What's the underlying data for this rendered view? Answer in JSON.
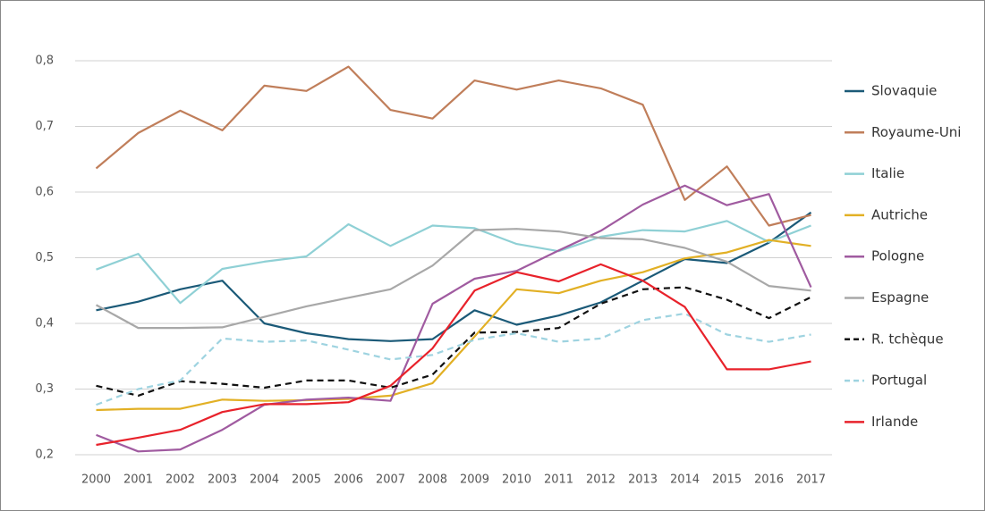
{
  "chart_data": {
    "type": "line",
    "categories": [
      "2000",
      "2001",
      "2002",
      "2003",
      "2004",
      "2005",
      "2006",
      "2007",
      "2008",
      "2009",
      "2010",
      "2011",
      "2012",
      "2013",
      "2014",
      "2015",
      "2016",
      "2017"
    ],
    "ylim": [
      0.2,
      0.8
    ],
    "yticks": [
      {
        "value": 0.2,
        "label": "0,2"
      },
      {
        "value": 0.3,
        "label": "0,3"
      },
      {
        "value": 0.4,
        "label": "0,4"
      },
      {
        "value": 0.5,
        "label": "0,5"
      },
      {
        "value": 0.6,
        "label": "0,6"
      },
      {
        "value": 0.7,
        "label": "0,7"
      },
      {
        "value": 0.8,
        "label": "0,8"
      }
    ],
    "grid": true,
    "legend": "right",
    "series": [
      {
        "name": "Slovaquie",
        "color": "#1b5a78",
        "dashed": false,
        "values": [
          0.42,
          0.433,
          0.452,
          0.465,
          0.4,
          0.385,
          0.376,
          0.373,
          0.376,
          0.42,
          0.398,
          0.412,
          0.432,
          0.465,
          0.498,
          0.492,
          0.523,
          0.569
        ]
      },
      {
        "name": "Royaume-Uni",
        "color": "#c07e5a",
        "dashed": false,
        "values": [
          0.636,
          0.69,
          0.724,
          0.694,
          0.762,
          0.754,
          0.791,
          0.725,
          0.712,
          0.77,
          0.756,
          0.77,
          0.758,
          0.733,
          0.588,
          0.639,
          0.549,
          0.565
        ]
      },
      {
        "name": "Italie",
        "color": "#8fd0d5",
        "dashed": false,
        "values": [
          0.482,
          0.506,
          0.431,
          0.483,
          0.494,
          0.502,
          0.551,
          0.518,
          0.549,
          0.545,
          0.521,
          0.51,
          0.532,
          0.542,
          0.54,
          0.556,
          0.524,
          0.549
        ]
      },
      {
        "name": "Autriche",
        "color": "#e2b025",
        "dashed": false,
        "values": [
          0.268,
          0.27,
          0.27,
          0.284,
          0.282,
          0.283,
          0.285,
          0.29,
          0.309,
          0.38,
          0.452,
          0.446,
          0.465,
          0.478,
          0.499,
          0.508,
          0.527,
          0.518
        ]
      },
      {
        "name": "Pologne",
        "color": "#a05ba0",
        "dashed": false,
        "values": [
          0.23,
          0.205,
          0.208,
          0.238,
          0.276,
          0.284,
          0.287,
          0.282,
          0.43,
          0.468,
          0.48,
          0.511,
          0.541,
          0.581,
          0.61,
          0.58,
          0.597,
          0.455
        ]
      },
      {
        "name": "Espagne",
        "color": "#a8a8a8",
        "dashed": false,
        "values": [
          0.428,
          0.393,
          0.393,
          0.394,
          0.41,
          0.426,
          0.439,
          0.452,
          0.488,
          0.542,
          0.544,
          0.54,
          0.53,
          0.528,
          0.515,
          0.494,
          0.457,
          0.45
        ]
      },
      {
        "name": "R. tchèque",
        "color": "#111111",
        "dashed": true,
        "values": [
          0.305,
          0.29,
          0.312,
          0.308,
          0.302,
          0.313,
          0.313,
          0.302,
          0.322,
          0.386,
          0.387,
          0.393,
          0.43,
          0.452,
          0.455,
          0.436,
          0.408,
          0.44
        ]
      },
      {
        "name": "Portugal",
        "color": "#9ed3e0",
        "dashed": true,
        "values": [
          0.276,
          0.3,
          0.313,
          0.377,
          0.372,
          0.374,
          0.36,
          0.345,
          0.352,
          0.375,
          0.385,
          0.372,
          0.377,
          0.405,
          0.415,
          0.383,
          0.372,
          0.383
        ]
      },
      {
        "name": "Irlande",
        "color": "#e8222b",
        "dashed": false,
        "values": [
          0.215,
          0.226,
          0.238,
          0.265,
          0.277,
          0.277,
          0.28,
          0.305,
          0.362,
          0.45,
          0.478,
          0.464,
          0.49,
          0.465,
          0.425,
          0.33,
          0.33,
          0.342
        ]
      }
    ]
  }
}
